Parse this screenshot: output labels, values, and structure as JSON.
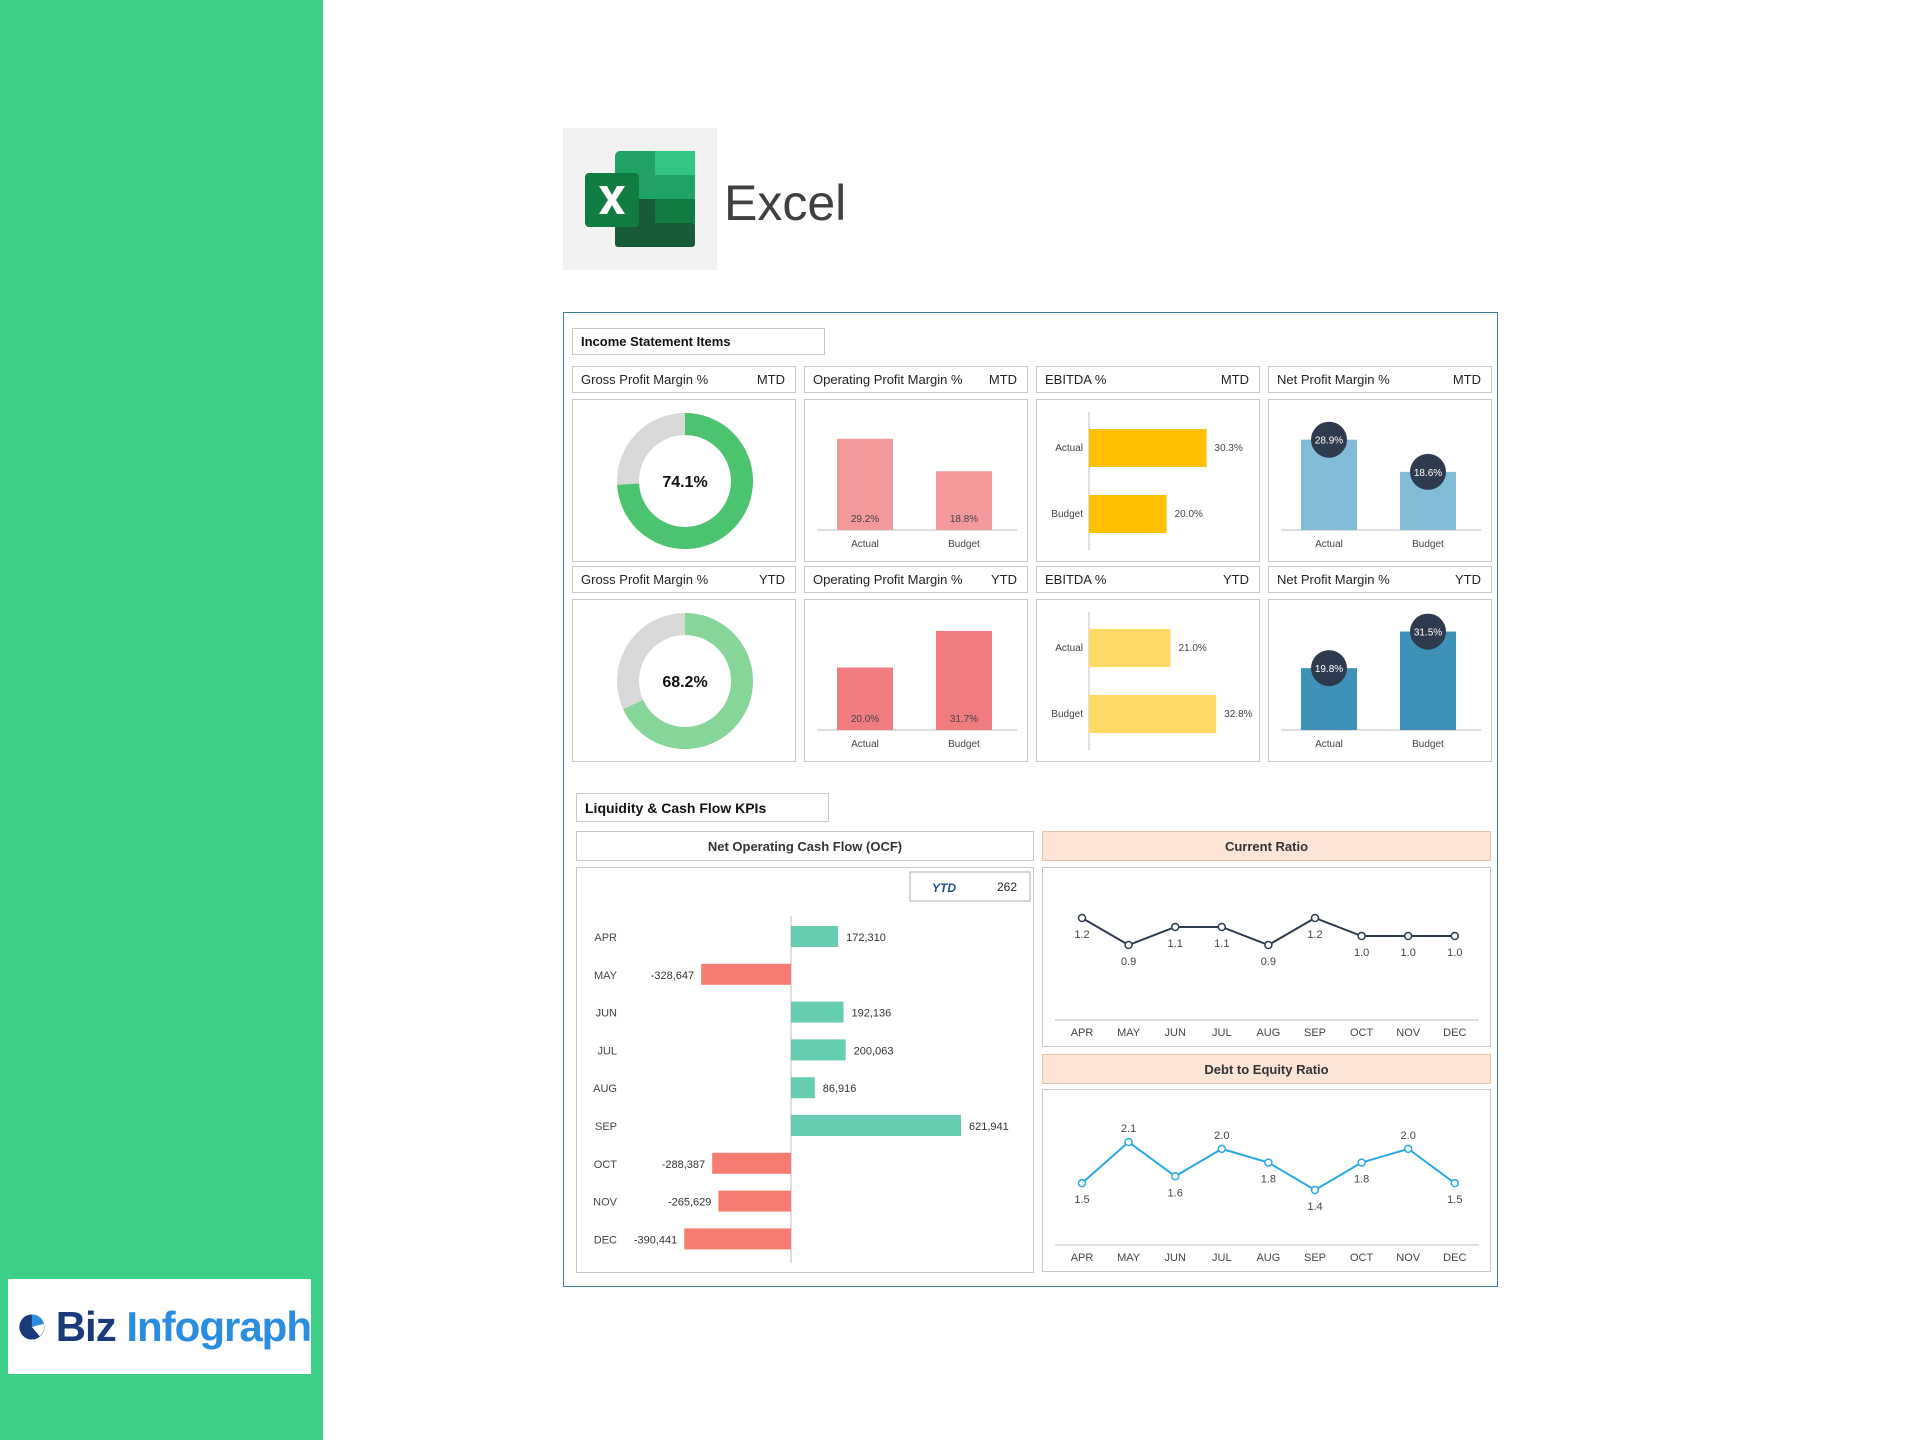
{
  "app": {
    "title": "Excel"
  },
  "brand": {
    "name_part1": "Biz",
    "name_part2": "Infograph"
  },
  "colors": {
    "sidebar": "#3dcf87",
    "donut_mtd": "#4cc36e",
    "donut_ytd": "#86d69a",
    "donut_rest": "#d9d9d9",
    "opm_mtd": "#f4999b",
    "opm_ytd": "#f07c7f",
    "ebitda_mtd": "#ffc000",
    "ebitda_ytd": "#ffd966",
    "npm_mtd": "#82bcd7",
    "npm_ytd": "#3f92b7",
    "npm_badge": "#2e3a4d",
    "ocf_pos": "#66cdb0",
    "ocf_neg": "#f67b70",
    "current_ratio_line": "#2e3a4d",
    "de_ratio_line": "#29a9e1"
  },
  "income": {
    "section_title": "Income Statement Items",
    "mtd_label": "MTD",
    "ytd_label": "YTD",
    "tiles": {
      "gpm_title": "Gross Profit Margin %",
      "opm_title": "Operating Profit Margin %",
      "ebitda_title": "EBITDA %",
      "npm_title": "Net Profit Margin %"
    }
  },
  "liquidity": {
    "section_title": "Liquidity & Cash Flow KPIs",
    "ocf_title": "Net Operating Cash Flow (OCF)",
    "ocf_ytd_label": "YTD",
    "ocf_ytd_value": "262",
    "current_ratio_title": "Current Ratio",
    "de_ratio_title": "Debt to Equity Ratio"
  },
  "chart_data": [
    {
      "id": "gpm_mtd",
      "type": "pie",
      "donut": true,
      "values": [
        74.1,
        25.9
      ],
      "center_label": "74.1%"
    },
    {
      "id": "gpm_ytd",
      "type": "pie",
      "donut": true,
      "values": [
        68.2,
        31.8
      ],
      "center_label": "68.2%"
    },
    {
      "id": "opm_mtd",
      "type": "bar",
      "categories": [
        "Actual",
        "Budget"
      ],
      "values": [
        29.2,
        18.8
      ],
      "labels": [
        "29.2%",
        "18.8%"
      ]
    },
    {
      "id": "opm_ytd",
      "type": "bar",
      "categories": [
        "Actual",
        "Budget"
      ],
      "values": [
        20.0,
        31.7
      ],
      "labels": [
        "20.0%",
        "31.7%"
      ]
    },
    {
      "id": "ebitda_mtd",
      "type": "bar",
      "orientation": "horizontal",
      "categories": [
        "Actual",
        "Budget"
      ],
      "values": [
        30.3,
        20.0
      ],
      "labels": [
        "30.3%",
        "20.0%"
      ]
    },
    {
      "id": "ebitda_ytd",
      "type": "bar",
      "orientation": "horizontal",
      "categories": [
        "Actual",
        "Budget"
      ],
      "values": [
        21.0,
        32.8
      ],
      "labels": [
        "21.0%",
        "32.8%"
      ]
    },
    {
      "id": "npm_mtd",
      "type": "bar",
      "categories": [
        "Actual",
        "Budget"
      ],
      "values": [
        28.9,
        18.6
      ],
      "labels": [
        "28.9%",
        "18.6%"
      ]
    },
    {
      "id": "npm_ytd",
      "type": "bar",
      "categories": [
        "Actual",
        "Budget"
      ],
      "values": [
        19.8,
        31.5
      ],
      "labels": [
        "19.8%",
        "31.5%"
      ]
    },
    {
      "id": "ocf",
      "type": "bar",
      "orientation": "horizontal",
      "categories": [
        "APR",
        "MAY",
        "JUN",
        "JUL",
        "AUG",
        "SEP",
        "OCT",
        "NOV",
        "DEC"
      ],
      "values": [
        172310,
        -328647,
        192136,
        200063,
        86916,
        621941,
        -288387,
        -265629,
        -390441
      ],
      "labels": [
        "172,310",
        "-328,647",
        "192,136",
        "200,063",
        "86,916",
        "621,941",
        "-288,387",
        "-265,629",
        "-390,441"
      ]
    },
    {
      "id": "current_ratio",
      "type": "line",
      "categories": [
        "APR",
        "MAY",
        "JUN",
        "JUL",
        "AUG",
        "SEP",
        "OCT",
        "NOV",
        "DEC"
      ],
      "values": [
        1.2,
        0.9,
        1.1,
        1.1,
        0.9,
        1.2,
        1.0,
        1.0,
        1.0
      ],
      "labels": [
        "1.2",
        "0.9",
        "1.1",
        "1.1",
        "0.9",
        "1.2",
        "1.0",
        "1.0",
        "1.0"
      ]
    },
    {
      "id": "de_ratio",
      "type": "line",
      "categories": [
        "APR",
        "MAY",
        "JUN",
        "JUL",
        "AUG",
        "SEP",
        "OCT",
        "NOV",
        "DEC"
      ],
      "values": [
        1.5,
        2.1,
        1.6,
        2.0,
        1.8,
        1.4,
        1.8,
        2.0,
        1.5
      ],
      "labels": [
        "1.5",
        "2.1",
        "1.6",
        "2.0",
        "1.8",
        "1.4",
        "1.8",
        "2.0",
        "1.5"
      ]
    }
  ]
}
